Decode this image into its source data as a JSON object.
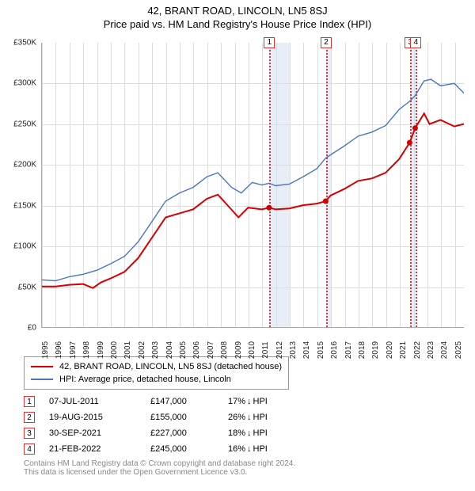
{
  "title_line1": "42, BRANT ROAD, LINCOLN, LN5 8SJ",
  "title_line2": "Price paid vs. HM Land Registry's House Price Index (HPI)",
  "chart": {
    "type": "line",
    "background_color": "#ffffff",
    "grid_color": "#dddddd",
    "band_color": "#e8eef8",
    "ymin": 0,
    "ymax": 350000,
    "ytick_step": 50000,
    "yticklabels": [
      "£0",
      "£50K",
      "£100K",
      "£150K",
      "£200K",
      "£250K",
      "£300K",
      "£350K"
    ],
    "xmin": 1995,
    "xmax": 2025.7,
    "xtick_step": 1,
    "years": [
      "1995",
      "1996",
      "1997",
      "1998",
      "1999",
      "2000",
      "2001",
      "2002",
      "2003",
      "2004",
      "2005",
      "2006",
      "2007",
      "2008",
      "2009",
      "2010",
      "2011",
      "2012",
      "2013",
      "2014",
      "2015",
      "2016",
      "2017",
      "2018",
      "2019",
      "2020",
      "2021",
      "2022",
      "2023",
      "2024",
      "2025"
    ],
    "bands": [
      {
        "from": 2011.52,
        "to": 2012.0
      },
      {
        "from": 2012.0,
        "to": 2013.0
      },
      {
        "from": 2015.64,
        "to": 2016.0
      },
      {
        "from": 2021.75,
        "to": 2022.15
      }
    ],
    "sale_year_lines": [
      2011.52,
      2015.64,
      2021.75,
      2022.15
    ],
    "sale_markers": [
      "1",
      "2",
      "3",
      "4"
    ],
    "series": {
      "red": {
        "label": "42, BRANT ROAD, LINCOLN, LN5 8SJ (detached house)",
        "color": "#d40000",
        "width": 2,
        "points": [
          [
            1995.0,
            50000
          ],
          [
            1996.0,
            50000
          ],
          [
            1997.0,
            52000
          ],
          [
            1998.0,
            53000
          ],
          [
            1998.7,
            48000
          ],
          [
            1999.3,
            55000
          ],
          [
            2000.0,
            60000
          ],
          [
            2001.0,
            68000
          ],
          [
            2002.0,
            85000
          ],
          [
            2003.0,
            110000
          ],
          [
            2004.0,
            135000
          ],
          [
            2005.0,
            140000
          ],
          [
            2006.0,
            145000
          ],
          [
            2007.0,
            158000
          ],
          [
            2007.8,
            163000
          ],
          [
            2008.5,
            150000
          ],
          [
            2009.3,
            135000
          ],
          [
            2010.0,
            147000
          ],
          [
            2011.0,
            145000
          ],
          [
            2011.52,
            147000
          ],
          [
            2012.0,
            145000
          ],
          [
            2013.0,
            146000
          ],
          [
            2014.0,
            150000
          ],
          [
            2015.0,
            152000
          ],
          [
            2015.64,
            155000
          ],
          [
            2016.0,
            162000
          ],
          [
            2017.0,
            170000
          ],
          [
            2018.0,
            180000
          ],
          [
            2019.0,
            183000
          ],
          [
            2020.0,
            190000
          ],
          [
            2021.0,
            207000
          ],
          [
            2021.75,
            227000
          ],
          [
            2022.15,
            245000
          ],
          [
            2022.8,
            263000
          ],
          [
            2023.2,
            250000
          ],
          [
            2024.0,
            255000
          ],
          [
            2025.0,
            247000
          ],
          [
            2025.7,
            250000
          ]
        ]
      },
      "blue": {
        "label": "HPI: Average price, detached house, Lincoln",
        "color": "#4a74c6",
        "width": 1.4,
        "points": [
          [
            1995.0,
            58000
          ],
          [
            1996.0,
            57000
          ],
          [
            1997.0,
            62000
          ],
          [
            1998.0,
            65000
          ],
          [
            1999.0,
            70000
          ],
          [
            2000.0,
            78000
          ],
          [
            2001.0,
            87000
          ],
          [
            2002.0,
            105000
          ],
          [
            2003.0,
            130000
          ],
          [
            2004.0,
            155000
          ],
          [
            2005.0,
            165000
          ],
          [
            2006.0,
            172000
          ],
          [
            2007.0,
            185000
          ],
          [
            2007.8,
            190000
          ],
          [
            2008.8,
            172000
          ],
          [
            2009.5,
            165000
          ],
          [
            2010.3,
            178000
          ],
          [
            2011.0,
            175000
          ],
          [
            2011.52,
            177000
          ],
          [
            2012.0,
            174000
          ],
          [
            2013.0,
            176000
          ],
          [
            2014.0,
            185000
          ],
          [
            2015.0,
            195000
          ],
          [
            2015.64,
            208000
          ],
          [
            2016.0,
            212000
          ],
          [
            2017.0,
            223000
          ],
          [
            2018.0,
            235000
          ],
          [
            2019.0,
            240000
          ],
          [
            2020.0,
            248000
          ],
          [
            2021.0,
            268000
          ],
          [
            2021.75,
            278000
          ],
          [
            2022.15,
            285000
          ],
          [
            2022.8,
            303000
          ],
          [
            2023.3,
            305000
          ],
          [
            2024.0,
            297000
          ],
          [
            2025.0,
            300000
          ],
          [
            2025.7,
            288000
          ]
        ]
      }
    },
    "sale_points": [
      {
        "year": 2011.52,
        "price": 147000
      },
      {
        "year": 2015.64,
        "price": 155000
      },
      {
        "year": 2021.75,
        "price": 227000
      },
      {
        "year": 2022.15,
        "price": 245000
      }
    ],
    "axis_label_fontsize": 10
  },
  "legend": {
    "red_label": "42, BRANT ROAD, LINCOLN, LN5 8SJ (detached house)",
    "blue_label": "HPI: Average price, detached house, Lincoln",
    "red_color": "#d40000",
    "blue_color": "#4a74c6"
  },
  "sales": [
    {
      "n": "1",
      "date": "07-JUL-2011",
      "price": "£147,000",
      "diff_pct": "17%",
      "diff_dir": "↓",
      "diff_vs": "HPI"
    },
    {
      "n": "2",
      "date": "19-AUG-2015",
      "price": "£155,000",
      "diff_pct": "26%",
      "diff_dir": "↓",
      "diff_vs": "HPI"
    },
    {
      "n": "3",
      "date": "30-SEP-2021",
      "price": "£227,000",
      "diff_pct": "18%",
      "diff_dir": "↓",
      "diff_vs": "HPI"
    },
    {
      "n": "4",
      "date": "21-FEB-2022",
      "price": "£245,000",
      "diff_pct": "16%",
      "diff_dir": "↓",
      "diff_vs": "HPI"
    }
  ],
  "footer_line1": "Contains HM Land Registry data © Crown copyright and database right 2024.",
  "footer_line2": "This data is licensed under the Open Government Licence v3.0."
}
